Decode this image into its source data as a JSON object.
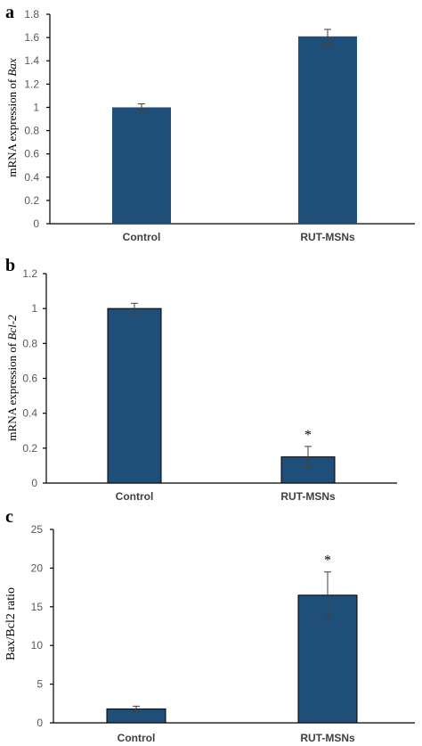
{
  "chart_data": [
    {
      "panel": "a",
      "type": "bar",
      "categories": [
        "Control",
        "RUT-MSNs"
      ],
      "values": [
        1.0,
        1.61
      ],
      "errors": [
        0.03,
        0.06
      ],
      "significance": [
        "",
        ""
      ],
      "ylabel_prefix": "mRNA expression of ",
      "ylabel_gene": "Bax",
      "ylim": [
        0,
        1.8
      ],
      "yticks": [
        0,
        0.2,
        0.4,
        0.6,
        0.8,
        1,
        1.2,
        1.4,
        1.6,
        1.8
      ],
      "ytick_labels": [
        "0",
        "0.2",
        "0.4",
        "0.6",
        "0.8",
        "1",
        "1.2",
        "1.4",
        "1.6",
        "1.8"
      ],
      "color": "#1f4e79"
    },
    {
      "panel": "b",
      "type": "bar",
      "categories": [
        "Control",
        "RUT-MSNs"
      ],
      "values": [
        1.0,
        0.15
      ],
      "errors": [
        0.03,
        0.06
      ],
      "significance": [
        "",
        "*"
      ],
      "ylabel_prefix": "mRNA expression of ",
      "ylabel_gene": "Bcl-2",
      "ylim": [
        0,
        1.2
      ],
      "yticks": [
        0,
        0.2,
        0.4,
        0.6,
        0.8,
        1,
        1.2
      ],
      "ytick_labels": [
        "0",
        "0.2",
        "0.4",
        "0.6",
        "0.8",
        "1",
        "1.2"
      ],
      "color": "#1f4e79"
    },
    {
      "panel": "c",
      "type": "bar",
      "categories": [
        "Control",
        "RUT-MSNs"
      ],
      "values": [
        1.8,
        16.5
      ],
      "errors": [
        0.35,
        3.0
      ],
      "significance": [
        "",
        "*"
      ],
      "ylabel_prefix": "Bax/Bcl2 ratio",
      "ylabel_gene": "",
      "ylim": [
        0,
        25
      ],
      "yticks": [
        0,
        5,
        10,
        15,
        20,
        25
      ],
      "ytick_labels": [
        "0",
        "5",
        "10",
        "15",
        "20",
        "25"
      ],
      "color": "#1f4e79"
    }
  ]
}
